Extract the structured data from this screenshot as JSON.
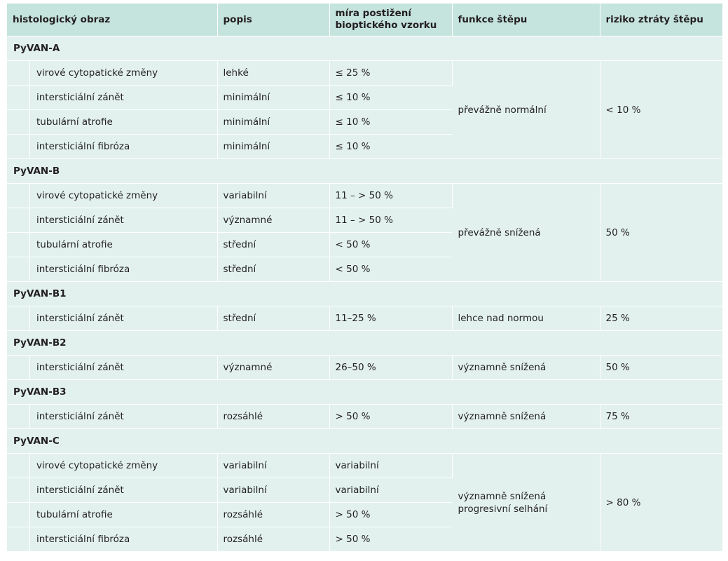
{
  "header": {
    "col1": "histologický obraz",
    "col2": "popis",
    "col3_line1": "míra postižení",
    "col3_line2": "bioptického vzorku",
    "col4": "funkce štěpu",
    "col5": "riziko ztráty štěpu"
  },
  "groups": {
    "a": {
      "title": "PyVAN-A",
      "function": "převážně normální",
      "risk": "< 10 %",
      "rows": [
        {
          "feature": "virové cytopatické změny",
          "desc": "lehké",
          "extent": "≤ 25 %"
        },
        {
          "feature": "intersticiální zánět",
          "desc": "minimální",
          "extent": "≤ 10 %"
        },
        {
          "feature": "tubulární atrofie",
          "desc": "minimální",
          "extent": "≤ 10 %"
        },
        {
          "feature": "intersticiální fibróza",
          "desc": "minimální",
          "extent": "≤ 10 %"
        }
      ]
    },
    "b": {
      "title": "PyVAN-B",
      "function": "převážně snížená",
      "risk": "50 %",
      "rows": [
        {
          "feature": "virové cytopatické změny",
          "desc": "variabilní",
          "extent": "11 – > 50 %"
        },
        {
          "feature": "intersticiální zánět",
          "desc": "významné",
          "extent": "11 – > 50 %"
        },
        {
          "feature": "tubulární atrofie",
          "desc": "střední",
          "extent": "< 50 %"
        },
        {
          "feature": "intersticiální fibróza",
          "desc": "střední",
          "extent": "< 50 %"
        }
      ]
    },
    "b1": {
      "title": "PyVAN-B1",
      "rows": [
        {
          "feature": "intersticiální zánět",
          "desc": "střední",
          "extent": "11–25 %",
          "function": "lehce nad normou",
          "risk": "25 %"
        }
      ]
    },
    "b2": {
      "title": "PyVAN-B2",
      "rows": [
        {
          "feature": "intersticiální zánět",
          "desc": "významné",
          "extent": "26–50 %",
          "function": "významně snížená",
          "risk": "50 %"
        }
      ]
    },
    "b3": {
      "title": "PyVAN-B3",
      "rows": [
        {
          "feature": "intersticiální zánět",
          "desc": "rozsáhlé",
          "extent": "> 50 %",
          "function": "významně snížená",
          "risk": "75 %"
        }
      ]
    },
    "c": {
      "title": "PyVAN-C",
      "function_line1": "významně snížená",
      "function_line2": "progresivní selhání",
      "risk": "> 80 %",
      "rows": [
        {
          "feature": "virové cytopatické změny",
          "desc": "variabilní",
          "extent": "variabilní"
        },
        {
          "feature": "intersticiální zánět",
          "desc": "variabilní",
          "extent": "variabilní"
        },
        {
          "feature": "tubulární atrofie",
          "desc": "rozsáhlé",
          "extent": "> 50 %"
        },
        {
          "feature": "intersticiální fibróza",
          "desc": "rozsáhlé",
          "extent": "> 50 %"
        }
      ]
    }
  }
}
